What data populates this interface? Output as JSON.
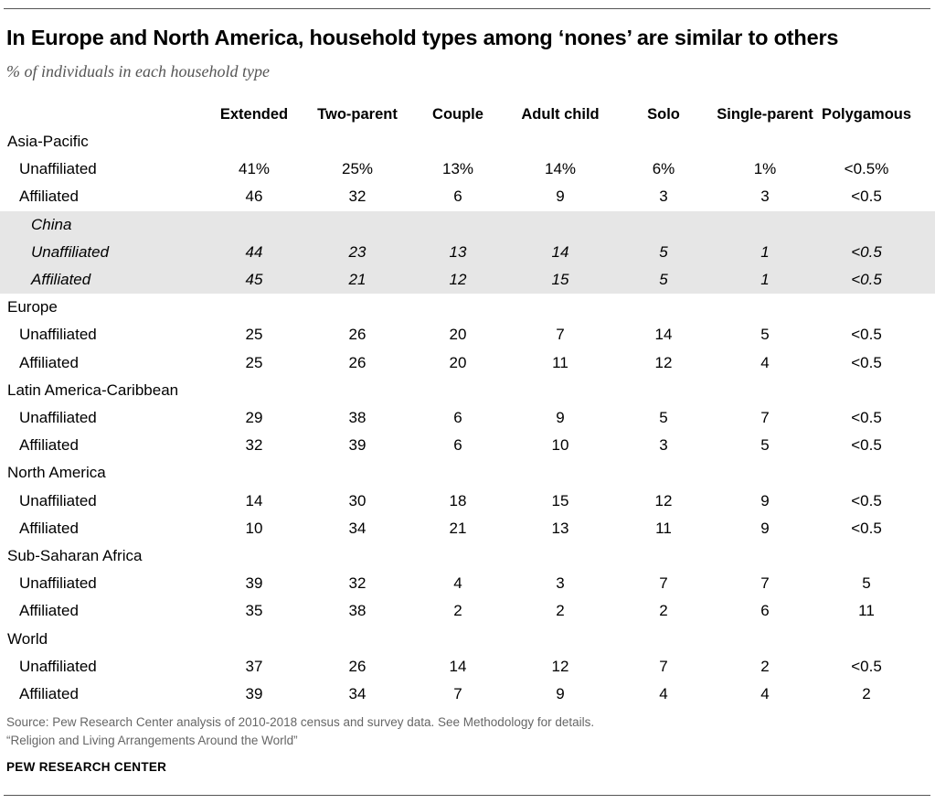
{
  "title": "In Europe and North America, household types among ‘nones’ are similar to others",
  "subtitle": "% of individuals in each household type",
  "chart_data": {
    "type": "table",
    "columns": [
      "Extended",
      "Two-parent",
      "Couple",
      "Adult child",
      "Solo",
      "Single-parent",
      "Polygamous"
    ],
    "rows": [
      {
        "kind": "region",
        "label": "Asia-Pacific"
      },
      {
        "kind": "group",
        "label": "Unaffiliated",
        "values": [
          "41%",
          "25%",
          "13%",
          "14%",
          "6%",
          "1%",
          "<0.5%"
        ]
      },
      {
        "kind": "group",
        "label": "Affiliated",
        "values": [
          "46",
          "32",
          "6",
          "9",
          "3",
          "3",
          "<0.5"
        ]
      },
      {
        "kind": "subregion",
        "label": "China",
        "shaded": true
      },
      {
        "kind": "subgroup",
        "label": "Unaffiliated",
        "shaded": true,
        "values": [
          "44",
          "23",
          "13",
          "14",
          "5",
          "1",
          "<0.5"
        ]
      },
      {
        "kind": "subgroup",
        "label": "Affiliated",
        "shaded": true,
        "values": [
          "45",
          "21",
          "12",
          "15",
          "5",
          "1",
          "<0.5"
        ]
      },
      {
        "kind": "region",
        "label": "Europe"
      },
      {
        "kind": "group",
        "label": "Unaffiliated",
        "values": [
          "25",
          "26",
          "20",
          "7",
          "14",
          "5",
          "<0.5"
        ]
      },
      {
        "kind": "group",
        "label": "Affiliated",
        "values": [
          "25",
          "26",
          "20",
          "11",
          "12",
          "4",
          "<0.5"
        ]
      },
      {
        "kind": "region",
        "label": "Latin America-Caribbean"
      },
      {
        "kind": "group",
        "label": "Unaffiliated",
        "values": [
          "29",
          "38",
          "6",
          "9",
          "5",
          "7",
          "<0.5"
        ]
      },
      {
        "kind": "group",
        "label": "Affiliated",
        "values": [
          "32",
          "39",
          "6",
          "10",
          "3",
          "5",
          "<0.5"
        ]
      },
      {
        "kind": "region",
        "label": "North America"
      },
      {
        "kind": "group",
        "label": "Unaffiliated",
        "values": [
          "14",
          "30",
          "18",
          "15",
          "12",
          "9",
          "<0.5"
        ]
      },
      {
        "kind": "group",
        "label": "Affiliated",
        "values": [
          "10",
          "34",
          "21",
          "13",
          "11",
          "9",
          "<0.5"
        ]
      },
      {
        "kind": "region",
        "label": "Sub-Saharan Africa"
      },
      {
        "kind": "group",
        "label": "Unaffiliated",
        "values": [
          "39",
          "32",
          "4",
          "3",
          "7",
          "7",
          "5"
        ]
      },
      {
        "kind": "group",
        "label": "Affiliated",
        "values": [
          "35",
          "38",
          "2",
          "2",
          "2",
          "6",
          "11"
        ]
      },
      {
        "kind": "region",
        "label": "World"
      },
      {
        "kind": "group",
        "label": "Unaffiliated",
        "values": [
          "37",
          "26",
          "14",
          "12",
          "7",
          "2",
          "<0.5"
        ]
      },
      {
        "kind": "group",
        "label": "Affiliated",
        "values": [
          "39",
          "34",
          "7",
          "9",
          "4",
          "4",
          "2"
        ]
      }
    ]
  },
  "footer": {
    "source": "Source: Pew Research Center analysis of 2010-2018 census and survey data. See Methodology for details.",
    "report": "“Religion and Living Arrangements Around the World”",
    "brand": "PEW RESEARCH CENTER"
  },
  "colors": {
    "shade": "#e6e6e6",
    "text": "#000000",
    "muted": "#666666",
    "rule": "#555555"
  }
}
